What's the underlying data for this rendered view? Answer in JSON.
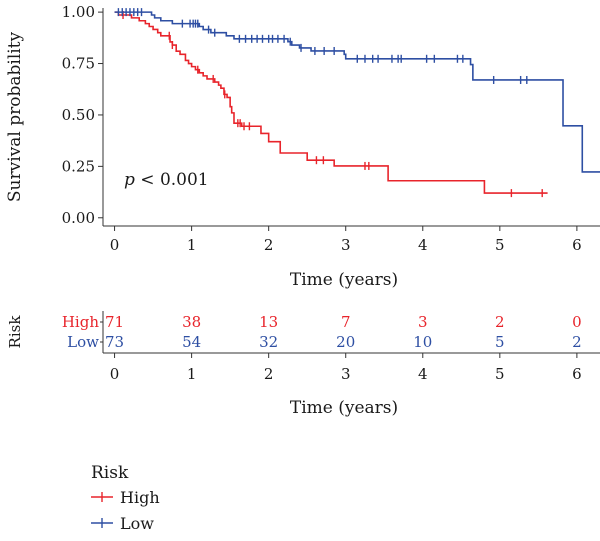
{
  "chart_data": {
    "type": "line",
    "subtype": "kaplan-meier",
    "ylabel": "Survival probability",
    "xlabel": "Time (years)",
    "xlim": [
      -0.15,
      6.3
    ],
    "ylim": [
      -0.04,
      1.02
    ],
    "x_ticks": [
      0,
      1,
      2,
      3,
      4,
      5,
      6
    ],
    "y_ticks": [
      0,
      0.25,
      0.5,
      0.75,
      1
    ],
    "y_tick_labels": [
      "0.00",
      "0.25",
      "0.50",
      "0.75",
      "1.00"
    ],
    "x_tick_labels": [
      "0",
      "1",
      "2",
      "3",
      "4",
      "5",
      "6"
    ],
    "annotation": {
      "italic": "p",
      "rest": " < 0.001",
      "x": 0.15,
      "y": 0.17
    },
    "series": [
      {
        "name": "High",
        "color": "#e8242b",
        "steps": [
          [
            0,
            1.0
          ],
          [
            0.05,
            0.986
          ],
          [
            0.22,
            0.972
          ],
          [
            0.32,
            0.958
          ],
          [
            0.4,
            0.944
          ],
          [
            0.45,
            0.93
          ],
          [
            0.5,
            0.916
          ],
          [
            0.56,
            0.9
          ],
          [
            0.6,
            0.885
          ],
          [
            0.72,
            0.855
          ],
          [
            0.75,
            0.84
          ],
          [
            0.8,
            0.81
          ],
          [
            0.85,
            0.795
          ],
          [
            0.92,
            0.765
          ],
          [
            0.96,
            0.75
          ],
          [
            1.0,
            0.735
          ],
          [
            1.05,
            0.72
          ],
          [
            1.1,
            0.705
          ],
          [
            1.15,
            0.69
          ],
          [
            1.2,
            0.675
          ],
          [
            1.3,
            0.66
          ],
          [
            1.35,
            0.645
          ],
          [
            1.38,
            0.63
          ],
          [
            1.42,
            0.6
          ],
          [
            1.46,
            0.585
          ],
          [
            1.5,
            0.54
          ],
          [
            1.52,
            0.51
          ],
          [
            1.55,
            0.46
          ],
          [
            1.65,
            0.445
          ],
          [
            1.9,
            0.41
          ],
          [
            2.0,
            0.37
          ],
          [
            2.15,
            0.315
          ],
          [
            2.5,
            0.28
          ],
          [
            2.85,
            0.252
          ],
          [
            3.55,
            0.18
          ],
          [
            4.8,
            0.12
          ],
          [
            5.62,
            0.12
          ]
        ],
        "censored": [
          0.11,
          0.71,
          0.75,
          1.08,
          1.28,
          1.43,
          1.6,
          1.63,
          1.68,
          1.75,
          2.62,
          2.71,
          3.25,
          3.3,
          5.15,
          5.55
        ]
      },
      {
        "name": "Low",
        "color": "#2e4fa3",
        "steps": [
          [
            0,
            1.0
          ],
          [
            0.48,
            0.986
          ],
          [
            0.52,
            0.972
          ],
          [
            0.6,
            0.958
          ],
          [
            0.75,
            0.944
          ],
          [
            1.1,
            0.93
          ],
          [
            1.15,
            0.915
          ],
          [
            1.25,
            0.9
          ],
          [
            1.45,
            0.885
          ],
          [
            1.55,
            0.87
          ],
          [
            2.25,
            0.856
          ],
          [
            2.3,
            0.84
          ],
          [
            2.4,
            0.826
          ],
          [
            2.55,
            0.811
          ],
          [
            2.98,
            0.795
          ],
          [
            3.0,
            0.773
          ],
          [
            4.62,
            0.745
          ],
          [
            4.65,
            0.67
          ],
          [
            5.82,
            0.447
          ],
          [
            6.07,
            0.223
          ],
          [
            6.3,
            0.223
          ]
        ],
        "censored": [
          0.05,
          0.1,
          0.15,
          0.2,
          0.25,
          0.3,
          0.35,
          0.88,
          0.98,
          1.02,
          1.05,
          1.08,
          1.22,
          1.3,
          1.62,
          1.7,
          1.78,
          1.85,
          1.92,
          2.0,
          2.05,
          2.12,
          2.2,
          2.28,
          2.42,
          2.6,
          2.72,
          2.85,
          3.15,
          3.25,
          3.35,
          3.42,
          3.6,
          3.68,
          3.72,
          4.05,
          4.15,
          4.45,
          4.52,
          4.92,
          5.27,
          5.35
        ]
      }
    ],
    "risk_table": {
      "title": "Risk",
      "xlabel": "Time (years)",
      "rows": [
        {
          "label": "High",
          "color": "#e8242b",
          "counts": [
            "71",
            "38",
            "13",
            "7",
            "3",
            "2",
            "0"
          ]
        },
        {
          "label": "Low",
          "color": "#2e4fa3",
          "counts": [
            "73",
            "54",
            "32",
            "20",
            "10",
            "5",
            "2"
          ]
        }
      ]
    },
    "legend": {
      "title": "Risk",
      "position": "bottom-left",
      "items": [
        {
          "label": "High",
          "color": "#e8242b"
        },
        {
          "label": "Low",
          "color": "#2e4fa3"
        }
      ]
    }
  }
}
